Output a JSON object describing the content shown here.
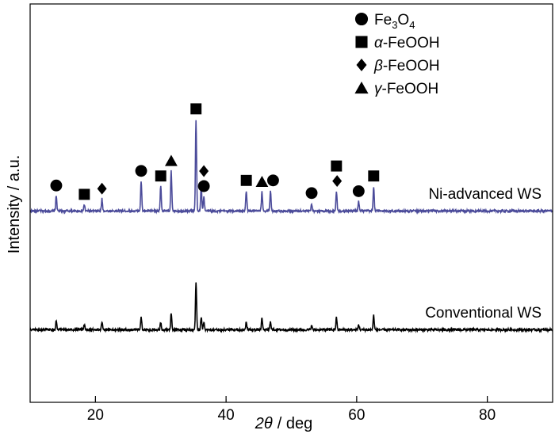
{
  "chart_data": {
    "type": "line",
    "xlabel_symbol": "2θ",
    "xlabel_unit": "/ deg",
    "ylabel": "Intensity / a.u.",
    "xlim": [
      10,
      90
    ],
    "xticks": [
      20,
      40,
      60,
      80
    ],
    "ytick_labels": false,
    "grid": false,
    "legend_position": "top-center",
    "legend": [
      {
        "marker": "circle",
        "name": "Fe",
        "sub1": "3",
        "mid": "O",
        "sub2": "4"
      },
      {
        "marker": "square",
        "prefix": "α",
        "name": "-FeOOH"
      },
      {
        "marker": "diamond",
        "prefix": "β",
        "name": "-FeOOH"
      },
      {
        "marker": "triangle",
        "prefix": "γ",
        "name": "-FeOOH"
      }
    ],
    "series": [
      {
        "name": "Ni-advanced WS",
        "color": "#4b4b9a",
        "baseline": 0.2,
        "peaks": [
          {
            "x": 14.0,
            "h": 2.4
          },
          {
            "x": 18.3,
            "h": 1.0
          },
          {
            "x": 21.0,
            "h": 1.9
          },
          {
            "x": 27.0,
            "h": 4.7
          },
          {
            "x": 30.0,
            "h": 3.9
          },
          {
            "x": 31.6,
            "h": 6.3
          },
          {
            "x": 35.4,
            "h": 14.5
          },
          {
            "x": 36.2,
            "h": 4.2
          },
          {
            "x": 36.6,
            "h": 2.3
          },
          {
            "x": 43.1,
            "h": 3.2
          },
          {
            "x": 45.5,
            "h": 3.0
          },
          {
            "x": 46.8,
            "h": 3.2
          },
          {
            "x": 53.1,
            "h": 1.2
          },
          {
            "x": 56.9,
            "h": 3.1
          },
          {
            "x": 60.3,
            "h": 1.5
          },
          {
            "x": 62.6,
            "h": 3.9
          }
        ],
        "markers": [
          {
            "x": 14.0,
            "shape": "circle"
          },
          {
            "x": 18.3,
            "shape": "square"
          },
          {
            "x": 21.0,
            "shape": "diamond"
          },
          {
            "x": 27.0,
            "shape": "circle"
          },
          {
            "x": 30.0,
            "shape": "square"
          },
          {
            "x": 31.6,
            "shape": "triangle"
          },
          {
            "x": 35.4,
            "shape": "square"
          },
          {
            "x": 36.6,
            "shape": "circle"
          },
          {
            "x": 36.6,
            "shape": "diamond"
          },
          {
            "x": 43.1,
            "shape": "square"
          },
          {
            "x": 45.5,
            "shape": "triangle"
          },
          {
            "x": 47.2,
            "shape": "circle"
          },
          {
            "x": 53.1,
            "shape": "circle"
          },
          {
            "x": 57.0,
            "shape": "diamond"
          },
          {
            "x": 56.9,
            "shape": "square"
          },
          {
            "x": 60.3,
            "shape": "circle"
          },
          {
            "x": 62.6,
            "shape": "square"
          }
        ]
      },
      {
        "name": "Conventional WS",
        "color": "#000000",
        "baseline": 0.2,
        "peaks": [
          {
            "x": 14.0,
            "h": 1.4
          },
          {
            "x": 18.3,
            "h": 0.8
          },
          {
            "x": 21.0,
            "h": 1.3
          },
          {
            "x": 27.0,
            "h": 2.0
          },
          {
            "x": 30.0,
            "h": 1.2
          },
          {
            "x": 31.6,
            "h": 2.7
          },
          {
            "x": 35.4,
            "h": 7.6
          },
          {
            "x": 36.2,
            "h": 2.1
          },
          {
            "x": 36.6,
            "h": 1.3
          },
          {
            "x": 43.1,
            "h": 1.2
          },
          {
            "x": 45.5,
            "h": 1.8
          },
          {
            "x": 46.8,
            "h": 1.3
          },
          {
            "x": 53.1,
            "h": 0.7
          },
          {
            "x": 56.9,
            "h": 1.9
          },
          {
            "x": 60.3,
            "h": 0.8
          },
          {
            "x": 62.6,
            "h": 2.3
          }
        ]
      }
    ]
  }
}
